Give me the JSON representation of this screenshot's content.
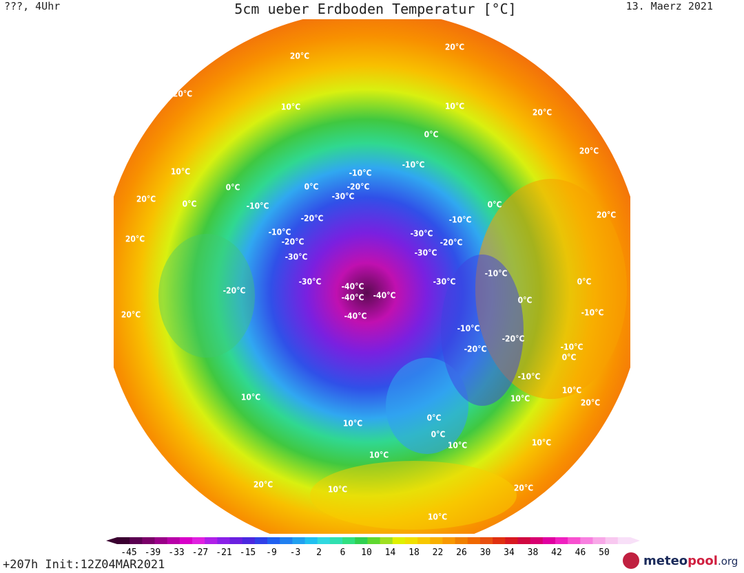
{
  "header": {
    "left": "???, 4Uhr",
    "title": "5cm ueber Erdboden Temperatur [°C]",
    "date": "13. Maerz 2021"
  },
  "contour_labels": [
    "20°C",
    "20°C",
    "20°C",
    "10°C",
    "10°C",
    "20°C",
    "10°C",
    "20°C",
    "0°C",
    "-10°C",
    "-10°C",
    "0°C",
    "0°C",
    "-10°C",
    "-20°C",
    "-30°C",
    "-20°C",
    "-10°C",
    "-20°C",
    "-30°C",
    "-40°C",
    "-40°C",
    "-40°C",
    "-40°C",
    "-30°C",
    "-20°C",
    "-30°C",
    "-20°C",
    "-10°C",
    "0°C",
    "-10°C",
    "0°C",
    "-20°C",
    "-30°C",
    "-30°C",
    "-10°C",
    "-20°C",
    "-10°C",
    "0°C",
    "10°C",
    "20°C",
    "20°C",
    "0°C",
    "-10°C",
    "-10°C",
    "0°C",
    "10°C",
    "10°C",
    "20°C",
    "10°C",
    "20°C",
    "10°C",
    "10°C",
    "20°C",
    "0°C",
    "0°C",
    "10°C",
    "10°C",
    "20°C",
    "20°C",
    "10°C"
  ],
  "colorbar": {
    "colors": [
      "#3a0030",
      "#5a0050",
      "#7a0068",
      "#9a0088",
      "#b800a8",
      "#d800c8",
      "#e020e0",
      "#b020e8",
      "#8a20e8",
      "#6a20e0",
      "#4a28e0",
      "#3040e8",
      "#2060f0",
      "#2080f0",
      "#20a0f0",
      "#20c0f0",
      "#30d8e0",
      "#30e0b0",
      "#30e080",
      "#30d050",
      "#60d830",
      "#a0e020",
      "#e0f000",
      "#f0e000",
      "#f8c800",
      "#f8b000",
      "#f89800",
      "#f08000",
      "#f06800",
      "#e85010",
      "#e03010",
      "#d81820",
      "#d00840",
      "#d80070",
      "#e000a0",
      "#f020c0",
      "#f850d0",
      "#f880e0",
      "#f8a8e8",
      "#f8c8f0",
      "#f8e0f8"
    ],
    "ticks": [
      "-45",
      "-39",
      "-33",
      "-27",
      "-21",
      "-15",
      "-9",
      "-3",
      "2",
      "6",
      "10",
      "14",
      "18",
      "22",
      "26",
      "30",
      "34",
      "38",
      "42",
      "46",
      "50"
    ]
  },
  "footer": {
    "run": "+207h Init:12Z04MAR2021",
    "logo_a": "meteo",
    "logo_b": "pool",
    "logo_c": ".org"
  }
}
